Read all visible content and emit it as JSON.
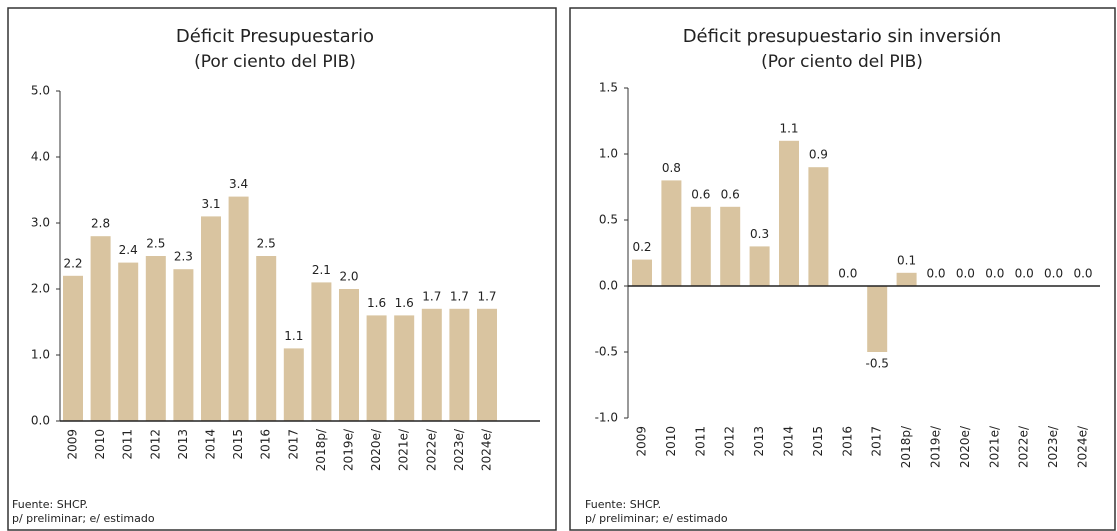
{
  "chart_data": [
    {
      "type": "bar",
      "title": "Déficit Presupuestario",
      "subtitle": "(Por ciento del PIB)",
      "categories": [
        "2009",
        "2010",
        "2011",
        "2012",
        "2013",
        "2014",
        "2015",
        "2016",
        "2017",
        "2018p/",
        "2019e/",
        "2020e/",
        "2021e/",
        "2022e/",
        "2023e/",
        "2024e/"
      ],
      "values": [
        2.2,
        2.8,
        2.4,
        2.5,
        2.3,
        3.1,
        3.4,
        2.5,
        1.1,
        2.1,
        2.0,
        1.6,
        1.6,
        1.7,
        1.7,
        1.7
      ],
      "value_labels": [
        "2.2",
        "2.8",
        "2.4",
        "2.5",
        "2.3",
        "3.1",
        "3.4",
        "2.5",
        "1.1",
        "2.1",
        "2.0",
        "1.6",
        "1.6",
        "1.7",
        "1.7",
        "1.7"
      ],
      "color": "#d9c4a0",
      "ylim": [
        0,
        5
      ],
      "yticks": [
        {
          "value": 0,
          "label": "0.0"
        },
        {
          "value": 1,
          "label": "1.0"
        },
        {
          "value": 2,
          "label": "2.0"
        },
        {
          "value": 3,
          "label": "3.0"
        },
        {
          "value": 4,
          "label": "4.0"
        },
        {
          "value": 5,
          "label": "5.0"
        }
      ],
      "source": "Fuente: SHCP.",
      "note": "p/ preliminar; e/ estimado"
    },
    {
      "type": "bar",
      "title": "Déficit presupuestario sin inversión",
      "subtitle": "(Por ciento del PIB)",
      "categories": [
        "2009",
        "2010",
        "2011",
        "2012",
        "2013",
        "2014",
        "2015",
        "2016",
        "2017",
        "2018p/",
        "2019e/",
        "2020e/",
        "2021e/",
        "2022e/",
        "2023e/",
        "2024e/"
      ],
      "values": [
        0.2,
        0.8,
        0.6,
        0.6,
        0.3,
        1.1,
        0.9,
        0,
        -0.5,
        0.1,
        0,
        0,
        0,
        0,
        0,
        0
      ],
      "value_labels": [
        "0.2",
        "0.8",
        "0.6",
        "0.6",
        "0.3",
        "1.1",
        "0.9",
        "0.0",
        "-0.5",
        "0.1",
        "0.0",
        "0.0",
        "0.0",
        "0.0",
        "0.0",
        "0.0"
      ],
      "color": "#d9c4a0",
      "ylim": [
        -1,
        1.5
      ],
      "yticks": [
        {
          "value": -1,
          "label": "-1.0"
        },
        {
          "value": -0.5,
          "label": "-0.5"
        },
        {
          "value": 0,
          "label": "0.0"
        },
        {
          "value": 0.5,
          "label": "0.5"
        },
        {
          "value": 1,
          "label": "1.0"
        },
        {
          "value": 1.5,
          "label": "1.5"
        }
      ],
      "source": "Fuente: SHCP.",
      "note": "p/ preliminar; e/ estimado"
    }
  ]
}
